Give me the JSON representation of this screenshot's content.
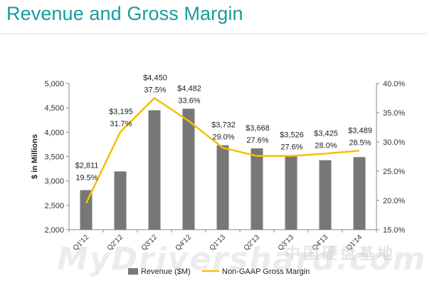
{
  "page": {
    "title": "Revenue and Gross Margin"
  },
  "chart_data": {
    "type": "bar",
    "title": "Revenue and Gross Margin",
    "categories": [
      "Q1'12",
      "Q2'12",
      "Q3'12",
      "Q4'12",
      "Q1'13",
      "Q2'13",
      "Q3'13",
      "Q4'13",
      "Q1'14"
    ],
    "series": [
      {
        "name": "Revenue ($M)",
        "type": "bar",
        "axis": "left",
        "color": "#777777",
        "values": [
          2811,
          3195,
          4450,
          4482,
          3732,
          3668,
          3526,
          3425,
          3489
        ]
      },
      {
        "name": "Non-GAAP Gross Margin",
        "type": "line",
        "axis": "right",
        "color": "#f2c200",
        "values": [
          19.5,
          31.7,
          37.5,
          33.6,
          29.0,
          27.6,
          27.6,
          28.0,
          28.5
        ]
      }
    ],
    "revenue_labels": [
      "$2,811",
      "$3,195",
      "$4,450",
      "$4,482",
      "$3,732",
      "$3,668",
      "$3,526",
      "$3,425",
      "$3,489"
    ],
    "margin_labels": [
      "19.5%",
      "31.7%",
      "37.5%",
      "33.6%",
      "29.0%",
      "27.6%",
      "27.6%",
      "28.0%",
      "28.5%"
    ],
    "ylabel": "$ in Millions",
    "ylim": [
      2000,
      5000
    ],
    "yticks": [
      2000,
      2500,
      3000,
      3500,
      4000,
      4500,
      5000
    ],
    "ytick_labels": [
      "2,000",
      "2,500",
      "3,000",
      "3,500",
      "4,000",
      "4,500",
      "5,000"
    ],
    "y2lim": [
      15,
      40
    ],
    "y2ticks": [
      15,
      20,
      25,
      30,
      35,
      40
    ],
    "y2tick_labels": [
      "15.0%",
      "20.0%",
      "25.0%",
      "30.0%",
      "35.0%",
      "40.0%"
    ],
    "legend": {
      "placement": "bottom",
      "items": [
        "Revenue ($M)",
        "Non-GAAP Gross Margin"
      ]
    }
  },
  "watermark": {
    "text": "MyDrivers",
    "site": "hard.com",
    "cn": "中国硬盘基地"
  }
}
